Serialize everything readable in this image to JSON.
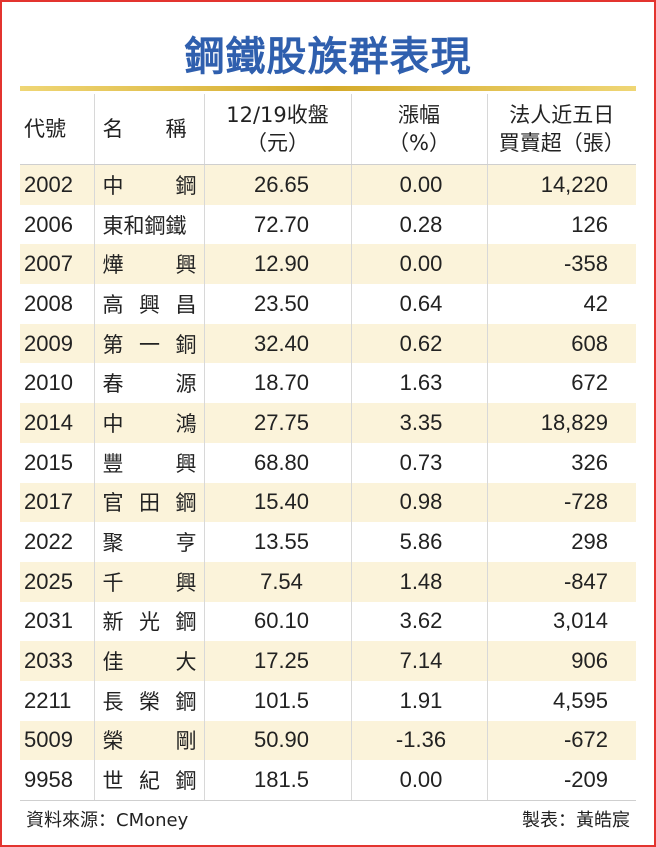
{
  "title": "鋼鐵股族群表現",
  "headers": {
    "code": "代號",
    "name": "名　　稱",
    "close_line1": "12/19收盤",
    "close_line2": "（元）",
    "change_line1": "漲幅",
    "change_line2": "（%）",
    "inst_line1": "法人近五日",
    "inst_line2": "買賣超（張）"
  },
  "rows": [
    {
      "code": "2002",
      "name": [
        "中",
        "鋼"
      ],
      "close": "26.65",
      "change": "0.00",
      "inst": "14,220"
    },
    {
      "code": "2006",
      "name": [
        "東和鋼鐵"
      ],
      "close": "72.70",
      "change": "0.28",
      "inst": "126"
    },
    {
      "code": "2007",
      "name": [
        "燁",
        "興"
      ],
      "close": "12.90",
      "change": "0.00",
      "inst": "-358"
    },
    {
      "code": "2008",
      "name": [
        "高",
        "興",
        "昌"
      ],
      "close": "23.50",
      "change": "0.64",
      "inst": "42"
    },
    {
      "code": "2009",
      "name": [
        "第",
        "一",
        "銅"
      ],
      "close": "32.40",
      "change": "0.62",
      "inst": "608"
    },
    {
      "code": "2010",
      "name": [
        "春",
        "源"
      ],
      "close": "18.70",
      "change": "1.63",
      "inst": "672"
    },
    {
      "code": "2014",
      "name": [
        "中",
        "鴻"
      ],
      "close": "27.75",
      "change": "3.35",
      "inst": "18,829"
    },
    {
      "code": "2015",
      "name": [
        "豐",
        "興"
      ],
      "close": "68.80",
      "change": "0.73",
      "inst": "326"
    },
    {
      "code": "2017",
      "name": [
        "官",
        "田",
        "鋼"
      ],
      "close": "15.40",
      "change": "0.98",
      "inst": "-728"
    },
    {
      "code": "2022",
      "name": [
        "聚",
        "亨"
      ],
      "close": "13.55",
      "change": "5.86",
      "inst": "298"
    },
    {
      "code": "2025",
      "name": [
        "千",
        "興"
      ],
      "close": "7.54",
      "change": "1.48",
      "inst": "-847"
    },
    {
      "code": "2031",
      "name": [
        "新",
        "光",
        "鋼"
      ],
      "close": "60.10",
      "change": "3.62",
      "inst": "3,014"
    },
    {
      "code": "2033",
      "name": [
        "佳",
        "大"
      ],
      "close": "17.25",
      "change": "7.14",
      "inst": "906"
    },
    {
      "code": "2211",
      "name": [
        "長",
        "榮",
        "鋼"
      ],
      "close": "101.5",
      "change": "1.91",
      "inst": "4,595"
    },
    {
      "code": "5009",
      "name": [
        "榮",
        "剛"
      ],
      "close": "50.90",
      "change": "-1.36",
      "inst": "-672"
    },
    {
      "code": "9958",
      "name": [
        "世",
        "紀",
        "鋼"
      ],
      "close": "181.5",
      "change": "0.00",
      "inst": "-209"
    }
  ],
  "footer": {
    "source": "資料來源：CMoney",
    "credit": "製表：黃皓宸"
  },
  "colors": {
    "title": "#2f5fae",
    "frame": "#e3342f",
    "stripe": "#fbf3da",
    "gold_rule": "#d4aa2a"
  }
}
